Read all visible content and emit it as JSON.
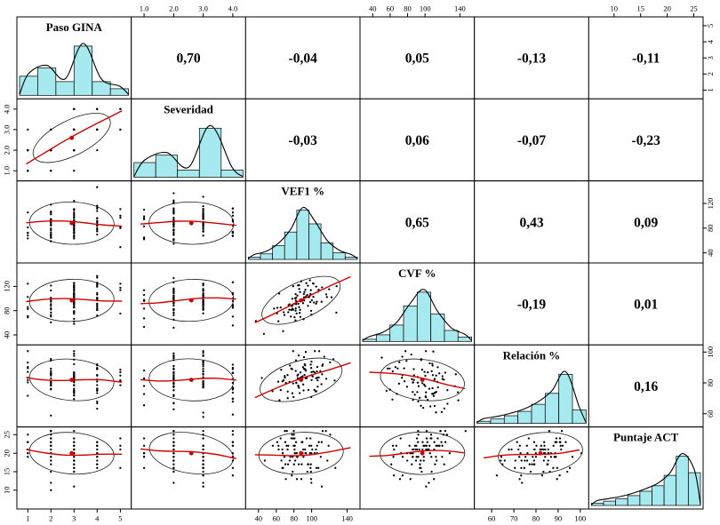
{
  "chart_data": {
    "type": "scatter",
    "subtype": "scatterplot-matrix",
    "title": "",
    "n_variables": 6,
    "variables": [
      {
        "name": "Paso GINA",
        "min": 0.7,
        "max": 5.3,
        "discrete": true,
        "est_mean": 2.9,
        "est_sd": 0.95,
        "hist_bins": [
          3.5,
          5,
          2.5,
          9,
          2.5,
          1.2
        ]
      },
      {
        "name": "Severidad",
        "min": 0.7,
        "max": 4.3,
        "discrete": true,
        "est_mean": 2.6,
        "est_sd": 0.85,
        "hist_bins": [
          3,
          4.5,
          1.5,
          10,
          1.5
        ]
      },
      {
        "name": "VEF1 %",
        "min": 30,
        "max": 150,
        "discrete": false,
        "est_mean": 88,
        "est_sd": 17,
        "hist_bins": [
          0.4,
          1,
          2.5,
          5,
          9,
          6.5,
          3,
          1.2,
          0.4
        ]
      },
      {
        "name": "CVF %",
        "min": 30,
        "max": 152,
        "discrete": false,
        "est_mean": 97,
        "est_sd": 18,
        "hist_bins": [
          0.4,
          1.2,
          3,
          6.5,
          9,
          5,
          2,
          0.8
        ]
      },
      {
        "name": "Relación %",
        "min": 54,
        "max": 102,
        "discrete": false,
        "est_mean": 82,
        "est_sd": 8.5,
        "hist_bins": [
          0.4,
          0.8,
          1.4,
          2.2,
          3.5,
          5.5,
          9,
          2.5
        ]
      },
      {
        "name": "Puntaje ACT",
        "min": 6,
        "max": 26,
        "discrete": true,
        "est_mean": 20,
        "est_sd": 3.6,
        "hist_bins": [
          0.4,
          0.8,
          1.2,
          1.8,
          2.6,
          3.6,
          5.5,
          9,
          6
        ]
      }
    ],
    "correlations": [
      {
        "row": 0,
        "col": 1,
        "display": "0,70",
        "value": 0.7
      },
      {
        "row": 0,
        "col": 2,
        "display": "-0,04",
        "value": -0.04
      },
      {
        "row": 0,
        "col": 3,
        "display": "0,05",
        "value": 0.05
      },
      {
        "row": 0,
        "col": 4,
        "display": "-0,13",
        "value": -0.13
      },
      {
        "row": 0,
        "col": 5,
        "display": "-0,11",
        "value": -0.11
      },
      {
        "row": 1,
        "col": 2,
        "display": "-0,03",
        "value": -0.03
      },
      {
        "row": 1,
        "col": 3,
        "display": "0,06",
        "value": 0.06
      },
      {
        "row": 1,
        "col": 4,
        "display": "-0,07",
        "value": -0.07
      },
      {
        "row": 1,
        "col": 5,
        "display": "-0,23",
        "value": -0.23
      },
      {
        "row": 2,
        "col": 3,
        "display": "0,65",
        "value": 0.65
      },
      {
        "row": 2,
        "col": 4,
        "display": "0,43",
        "value": 0.43
      },
      {
        "row": 2,
        "col": 5,
        "display": "0,09",
        "value": 0.09
      },
      {
        "row": 3,
        "col": 4,
        "display": "-0,19",
        "value": -0.19
      },
      {
        "row": 3,
        "col": 5,
        "display": "0,01",
        "value": 0.01
      },
      {
        "row": 4,
        "col": 5,
        "display": "0,16",
        "value": 0.16
      }
    ],
    "axis_ticks": {
      "top": [
        {
          "col": 1,
          "values": [
            1,
            2,
            3,
            4
          ],
          "labels": [
            "1.0",
            "2.0",
            "3.0",
            "4.0"
          ]
        },
        {
          "col": 3,
          "values": [
            40,
            60,
            80,
            100,
            140
          ],
          "labels": [
            "40",
            "60",
            "80",
            "100",
            "140"
          ]
        },
        {
          "col": 5,
          "values": [
            10,
            15,
            20,
            25
          ],
          "labels": [
            "10",
            "15",
            "20",
            "25"
          ]
        }
      ],
      "bottom": [
        {
          "col": 0,
          "values": [
            1,
            2,
            3,
            4,
            5
          ],
          "labels": [
            "1",
            "2",
            "3",
            "4",
            "5"
          ]
        },
        {
          "col": 2,
          "values": [
            40,
            60,
            80,
            100,
            140
          ],
          "labels": [
            "40",
            "60",
            "80",
            "100",
            "140"
          ]
        },
        {
          "col": 4,
          "values": [
            60,
            70,
            80,
            90,
            100
          ],
          "labels": [
            "60",
            "70",
            "80",
            "90",
            "100"
          ]
        }
      ],
      "left": [
        {
          "row": 1,
          "values": [
            1,
            2,
            3,
            4
          ],
          "labels": [
            "1.0",
            "2.0",
            "3.0",
            "4.0"
          ]
        },
        {
          "row": 3,
          "values": [
            40,
            80,
            120
          ],
          "labels": [
            "40",
            "80",
            "120"
          ]
        },
        {
          "row": 5,
          "values": [
            10,
            15,
            20,
            25
          ],
          "labels": [
            "10",
            "15",
            "20",
            "25"
          ]
        }
      ],
      "right": [
        {
          "row": 0,
          "values": [
            1,
            2,
            3,
            4,
            5
          ],
          "labels": [
            "1",
            "2",
            "3",
            "4",
            "5"
          ]
        },
        {
          "row": 2,
          "values": [
            40,
            80,
            120
          ],
          "labels": [
            "40",
            "80",
            "120"
          ]
        },
        {
          "row": 4,
          "values": [
            60,
            80,
            100
          ],
          "labels": [
            "60",
            "80",
            "100"
          ]
        }
      ]
    },
    "layout": {
      "grid": "off",
      "legend": "none",
      "diagonal": "histogram-with-density",
      "upper_triangle": "correlation-values",
      "lower_triangle": "scatter-with-ellipse-and-smooth"
    },
    "style": {
      "hist_fill": "#a6e9ee",
      "hist_stroke": "#000000",
      "point_color": "#000000",
      "line_color": "#d40000",
      "center_dot_color": "#d40000",
      "ellipse_color": "#1c1c1c",
      "panel_border": "#000000",
      "background": "#ffffff"
    }
  }
}
